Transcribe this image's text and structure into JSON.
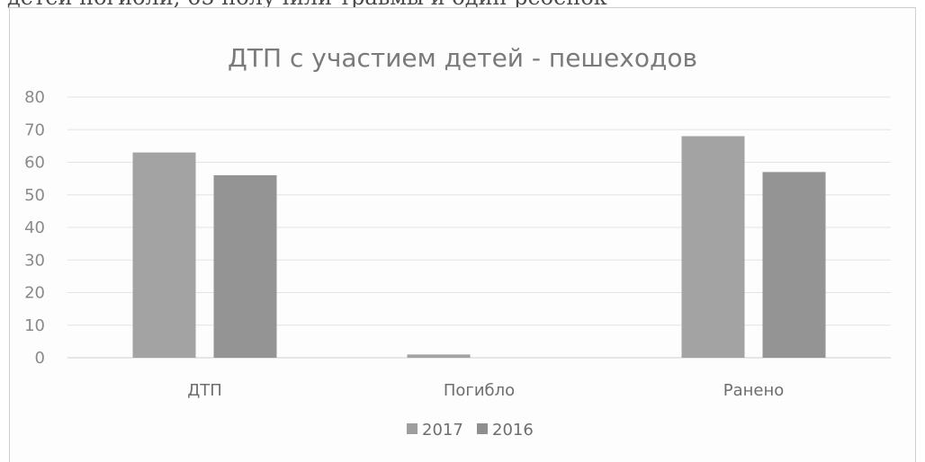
{
  "page": {
    "cut_text": "детей погибли, 65 получили травмы и один ребенок"
  },
  "chart_data": {
    "type": "bar",
    "title": "ДТП с участием детей - пешеходов",
    "categories": [
      "ДТП",
      "Погибло",
      "Ранено"
    ],
    "series": [
      {
        "name": "2017",
        "values": [
          63,
          1,
          68
        ],
        "color": "#9e9e9e"
      },
      {
        "name": "2016",
        "values": [
          56,
          0,
          57
        ],
        "color": "#8e8e8e"
      }
    ],
    "yticks": [
      0,
      10,
      20,
      30,
      40,
      50,
      60,
      70,
      80
    ],
    "ylim": [
      0,
      80
    ],
    "grid": true,
    "legend": "bottom"
  }
}
